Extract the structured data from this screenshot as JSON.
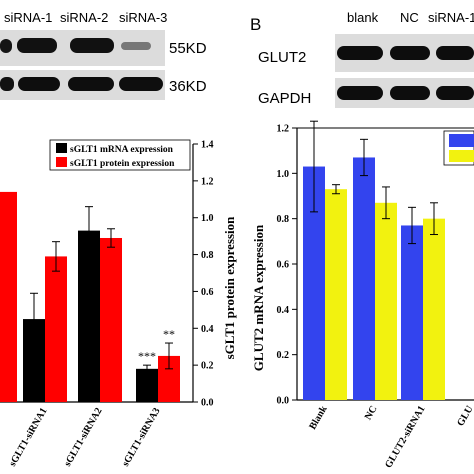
{
  "left_panel": {
    "lane_labels": [
      "siRNA-1",
      "siRNA-2",
      "siRNA-3"
    ],
    "blot_labels": [
      "55KD",
      "36KD"
    ],
    "chart_data": {
      "type": "bar",
      "categories": [
        "",
        "sGLT1-siRNA1",
        "sGLT1-siRNA2",
        "sGLT1-siRNA3"
      ],
      "series": [
        {
          "name": "sGLT1 mRNA expression",
          "values": [
            null,
            0.45,
            0.93,
            0.18
          ],
          "errors": [
            null,
            0.14,
            0.13,
            0.02
          ],
          "color": "#000000"
        },
        {
          "name": "sGLT1 protein expression",
          "values": [
            1.14,
            0.79,
            0.89,
            0.25
          ],
          "errors": [
            null,
            0.08,
            0.05,
            0.07
          ],
          "color": "#ff0000"
        }
      ],
      "significance": [
        {
          "category_index": 3,
          "series": 0,
          "text": "***"
        },
        {
          "category_index": 3,
          "series": 1,
          "text": "**"
        }
      ],
      "right_axis": {
        "ylabel": "sGLT1 protein expression",
        "ylim": [
          0,
          1.4
        ],
        "ticks": [
          "0.0",
          "0.2",
          "0.4",
          "0.6",
          "0.8",
          "1.0",
          "1.2",
          "1.4"
        ]
      },
      "legend_position": "top-right"
    }
  },
  "right_panel": {
    "panel_label": "B",
    "lane_labels": [
      "blank",
      "NC",
      "siRNA-1"
    ],
    "blot_labels": [
      "GLUT2",
      "GAPDH"
    ],
    "chart_data": {
      "type": "bar",
      "categories": [
        "Blank",
        "NC",
        "GLUT2-siRNA1",
        "GLU"
      ],
      "series": [
        {
          "values": [
            1.03,
            1.07,
            0.77,
            null
          ],
          "errors": [
            0.2,
            0.08,
            0.08,
            null
          ],
          "color": "#3344ee"
        },
        {
          "values": [
            0.93,
            0.87,
            0.8,
            null
          ],
          "errors": [
            0.02,
            0.07,
            0.07,
            null
          ],
          "color": "#f2f20f"
        }
      ],
      "ylabel": "GLUT2 mRNA expression",
      "ylim": [
        0,
        1.2
      ],
      "ticks": [
        "0.0",
        "0.2",
        "0.4",
        "0.6",
        "0.8",
        "1.0",
        "1.2"
      ],
      "legend_position": "top-right"
    }
  }
}
